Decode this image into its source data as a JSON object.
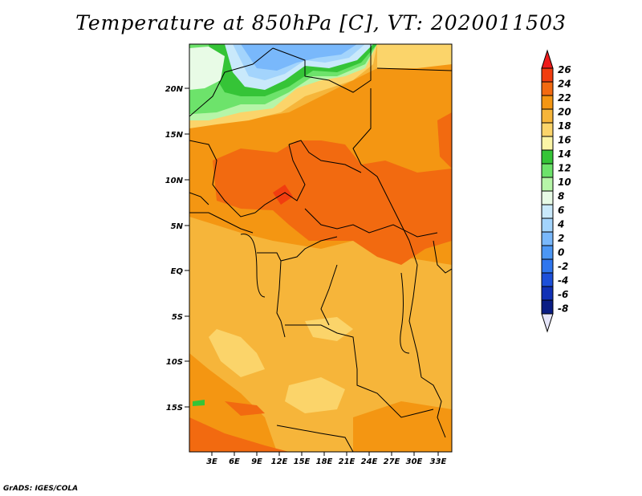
{
  "title": "Temperature at 850hPa [C], VT: 2020011503",
  "credit": "GrADS: IGES/COLA",
  "map": {
    "lat_labels": [
      "20N",
      "15N",
      "10N",
      "5N",
      "EQ",
      "5S",
      "10S",
      "15S"
    ],
    "lon_labels": [
      "3E",
      "6E",
      "9E",
      "12E",
      "15E",
      "18E",
      "21E",
      "24E",
      "27E",
      "30E",
      "33E"
    ]
  },
  "legend": {
    "labels": [
      "26",
      "24",
      "22",
      "20",
      "18",
      "16",
      "14",
      "12",
      "10",
      "8",
      "6",
      "4",
      "2",
      "0",
      "-2",
      "-4",
      "-6",
      "-8"
    ],
    "colors": [
      "#ee1a1a",
      "#f13d0f",
      "#f26a10",
      "#f49612",
      "#f6b53a",
      "#fbd46a",
      "#fbf5a6",
      "#35c437",
      "#6de36b",
      "#b6f5a8",
      "#e8fbe6",
      "#c9e9fb",
      "#a3d4fc",
      "#79b8fb",
      "#4c97f5",
      "#2f76ee",
      "#1c4fd9",
      "#1131b6",
      "#0a1d84",
      "#e6e6fa"
    ]
  }
}
